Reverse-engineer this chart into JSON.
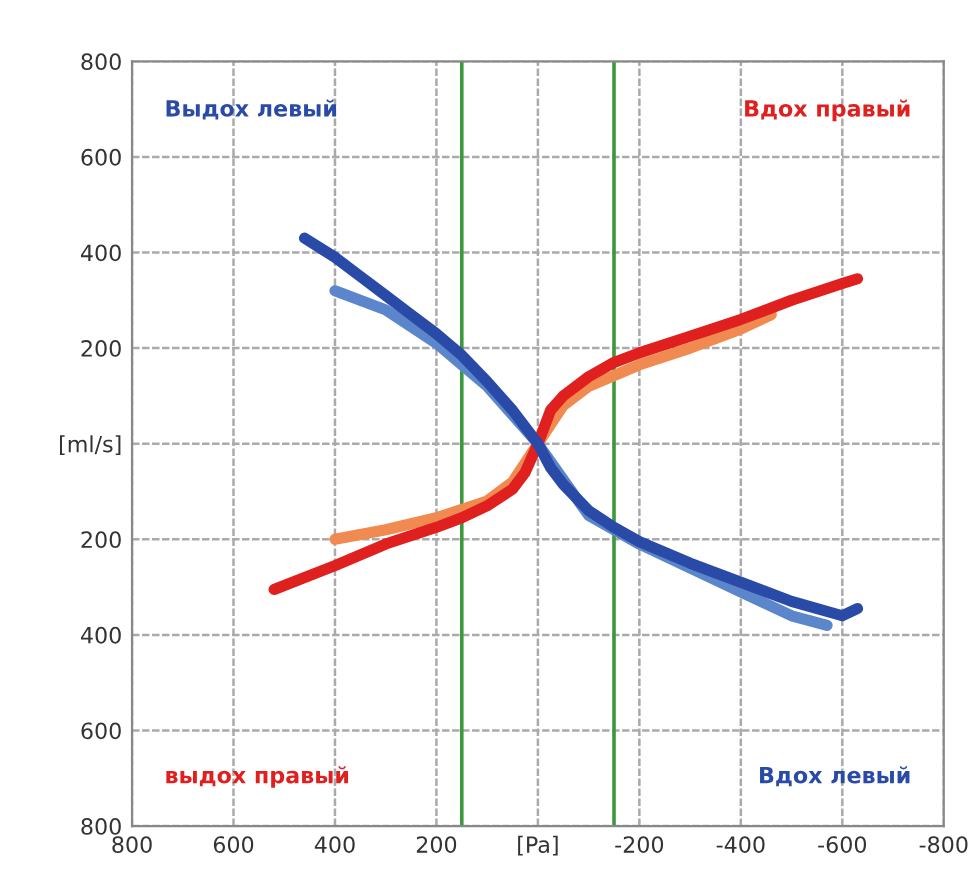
{
  "chart_data": {
    "type": "line",
    "xlim": [
      800,
      -800
    ],
    "ylim": [
      -800,
      800
    ],
    "xticks": [
      800,
      600,
      400,
      200,
      {
        "value": 0,
        "label": "[Pa]"
      },
      {
        "value": -200,
        "label": "-200"
      },
      {
        "value": -400,
        "label": "-400"
      },
      {
        "value": -600,
        "label": "-600"
      },
      {
        "value": -800,
        "label": "-800"
      }
    ],
    "yticks": [
      800,
      600,
      400,
      200,
      {
        "value": 0,
        "label": "[ml/s]"
      },
      {
        "value": -200,
        "label": "200"
      },
      {
        "value": -400,
        "label": "400"
      },
      {
        "value": -600,
        "label": "600"
      },
      {
        "value": -800,
        "label": "800"
      }
    ],
    "grid": true,
    "legend": false,
    "line_style": "solid",
    "marker": "none",
    "annotations": [
      "Выдох левый",
      "Вдох правый",
      "выдох правый",
      "Вдох левый"
    ],
    "ref_lines": [
      {
        "axis": "x",
        "value": 150,
        "color": "#3c9a3c"
      },
      {
        "axis": "x",
        "value": -150,
        "color": "#3c9a3c"
      }
    ],
    "series": [
      {
        "color": "#2a4aa8",
        "x": [
          460,
          400,
          350,
          300,
          250,
          200,
          150,
          100,
          50,
          0,
          -25,
          -50,
          -100,
          -150,
          -200,
          -300,
          -400,
          -500,
          -600,
          -630
        ],
        "values": [
          430,
          390,
          350,
          310,
          270,
          230,
          185,
          130,
          70,
          0,
          -50,
          -85,
          -140,
          -175,
          -205,
          -250,
          -290,
          -330,
          -360,
          -345
        ]
      },
      {
        "color": "#e0201e",
        "x": [
          520,
          400,
          300,
          200,
          150,
          100,
          50,
          25,
          0,
          -25,
          -50,
          -100,
          -150,
          -200,
          -300,
          -400,
          -500,
          -600,
          -630
        ],
        "values": [
          -305,
          -255,
          -210,
          -175,
          -155,
          -130,
          -95,
          -60,
          0,
          70,
          100,
          140,
          170,
          190,
          225,
          260,
          300,
          335,
          345
        ]
      },
      {
        "color": "#5b86cc",
        "x": [
          400,
          300,
          200,
          100,
          0,
          -100,
          -200,
          -300,
          -400,
          -500,
          -570
        ],
        "values": [
          320,
          280,
          210,
          120,
          0,
          -150,
          -210,
          -260,
          -310,
          -360,
          -380
        ]
      },
      {
        "color": "#f08a50",
        "x": [
          400,
          300,
          200,
          100,
          50,
          0,
          -50,
          -100,
          -200,
          -300,
          -400,
          -460
        ],
        "values": [
          -200,
          -180,
          -155,
          -120,
          -80,
          0,
          80,
          120,
          165,
          200,
          240,
          270
        ]
      }
    ]
  }
}
